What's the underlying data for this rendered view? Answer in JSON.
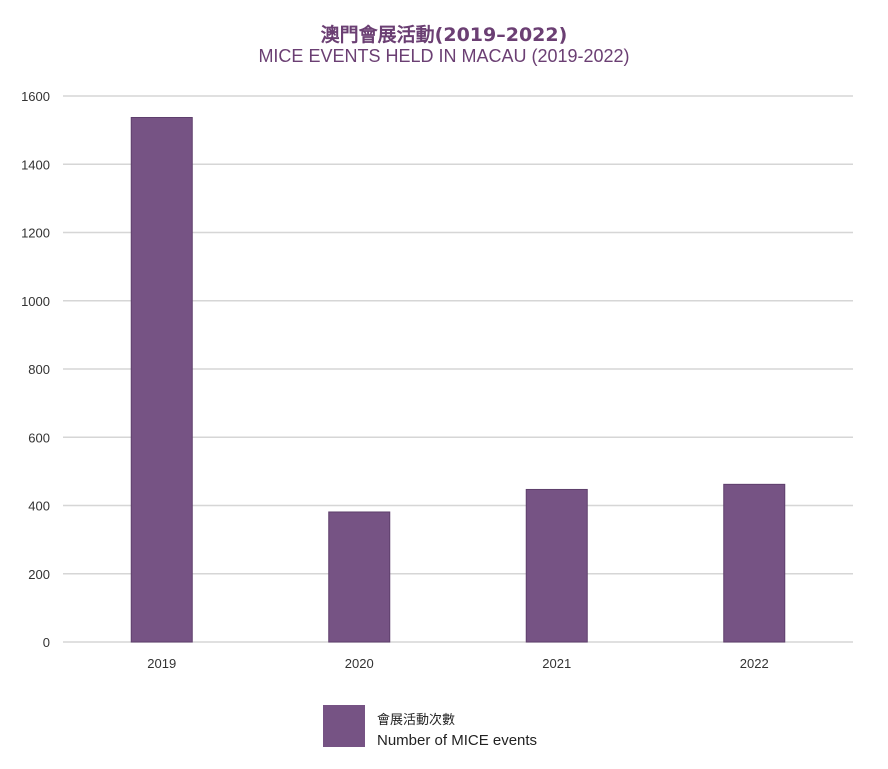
{
  "colors": {
    "bar": "#765384",
    "bar_edge": "#5e3f6c",
    "title": "#6b3f73",
    "grid": "#d6d6d6"
  },
  "chart_data": {
    "type": "bar",
    "title": "澳門會展活動(2019–2022)",
    "subtitle": "MICE EVENTS HELD IN MACAU (2019-2022)",
    "xlabel": "",
    "ylabel": "",
    "categories": [
      "2019",
      "2020",
      "2021",
      "2022"
    ],
    "series": [
      {
        "name": "會展活動次數 Number of MICE events",
        "values": [
          1537,
          381,
          447,
          462
        ]
      }
    ],
    "ylim": [
      0,
      1600
    ],
    "yticks": [
      "0",
      "200",
      "400",
      "600",
      "800",
      "1000",
      "1200",
      "1400",
      "1600"
    ],
    "grid": true,
    "legend": {
      "position": "bottom-center",
      "label_zh": "會展活動次數",
      "label_en": "Number of MICE events"
    }
  }
}
